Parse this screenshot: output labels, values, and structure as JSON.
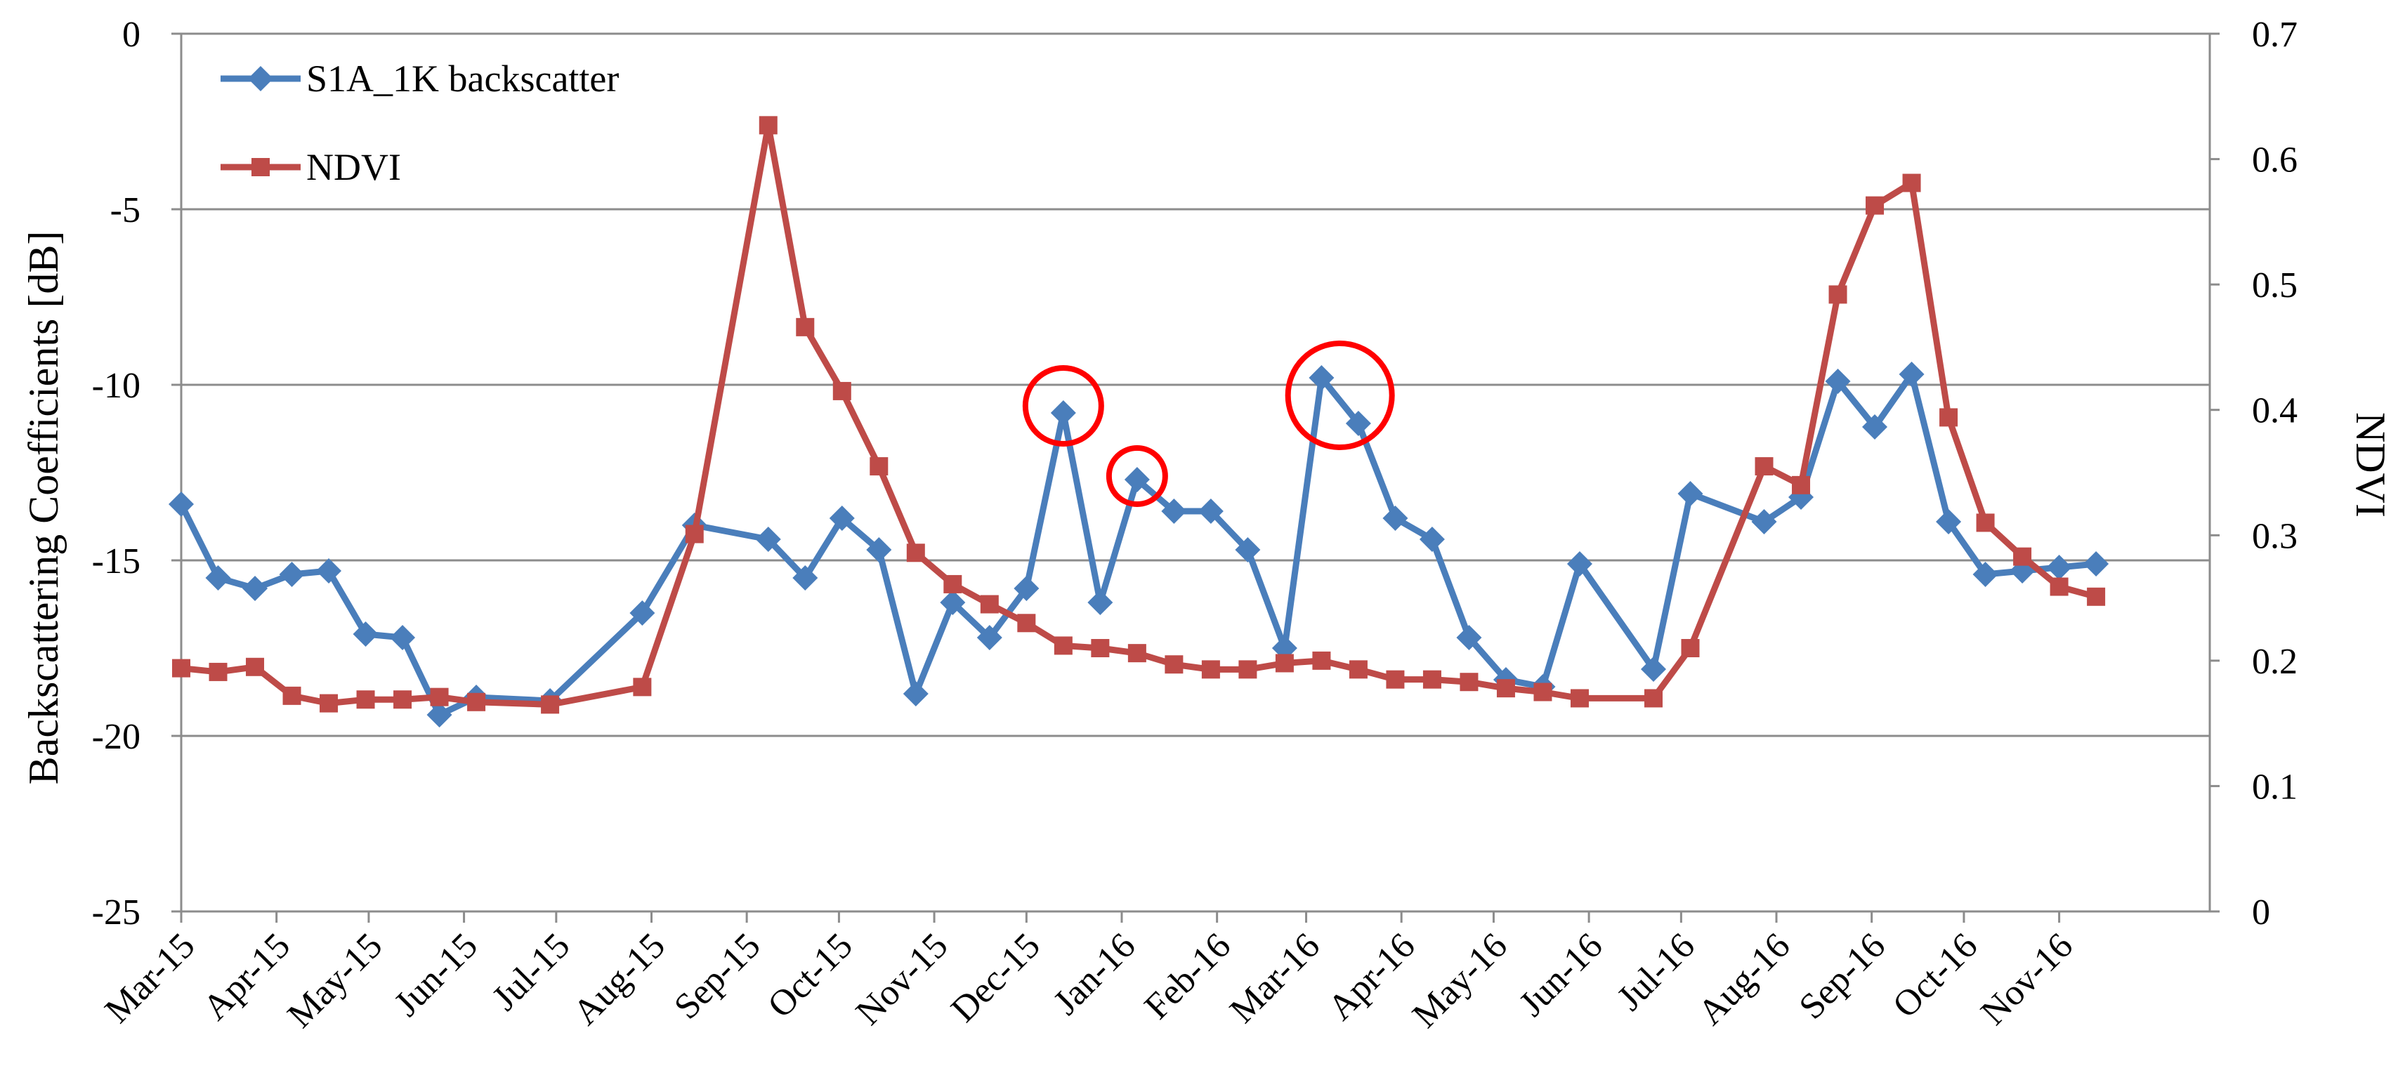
{
  "chart_data": {
    "type": "line",
    "title": "",
    "xlabel": "",
    "ylabel": "Backscattering Coefficients [dB]",
    "y2label": "NDVI",
    "ylim": [
      -25,
      0
    ],
    "yticks": [
      "0",
      "-5",
      "-10",
      "-15",
      "-20",
      "-25"
    ],
    "y2lim": [
      0,
      0.7
    ],
    "y2ticks": [
      "0",
      "0.1",
      "0.2",
      "0.3",
      "0.4",
      "0.5",
      "0.6",
      "0.7"
    ],
    "xlim": [
      "2015-03-01",
      "2016-12-20"
    ],
    "xticks": [
      "Mar-15",
      "Apr-15",
      "May-15",
      "Jun-15",
      "Jul-15",
      "Aug-15",
      "Sep-15",
      "Oct-15",
      "Nov-15",
      "Dec-15",
      "Jan-16",
      "Feb-16",
      "Mar-16",
      "Apr-16",
      "May-16",
      "Jun-16",
      "Jul-16",
      "Aug-16",
      "Sep-16",
      "Oct-16",
      "Nov-16"
    ],
    "grid": "horizontal",
    "legend_position": "top-left",
    "series": [
      {
        "name": "S1A_1K backscatter",
        "axis": "left",
        "color": "#4a7ebb",
        "marker": "diamond",
        "points": [
          [
            "2015-03-01",
            -13.4
          ],
          [
            "2015-03-13",
            -15.5
          ],
          [
            "2015-03-25",
            -15.8
          ],
          [
            "2015-04-06",
            -15.4
          ],
          [
            "2015-04-18",
            -15.3
          ],
          [
            "2015-04-30",
            -17.1
          ],
          [
            "2015-05-12",
            -17.2
          ],
          [
            "2015-05-24",
            -19.4
          ],
          [
            "2015-06-05",
            -18.9
          ],
          [
            "2015-06-29",
            -19.0
          ],
          [
            "2015-07-29",
            -16.5
          ],
          [
            "2015-08-15",
            -14.0
          ],
          [
            "2015-09-08",
            -14.4
          ],
          [
            "2015-09-20",
            -15.5
          ],
          [
            "2015-10-02",
            -13.8
          ],
          [
            "2015-10-14",
            -14.7
          ],
          [
            "2015-10-26",
            -18.8
          ],
          [
            "2015-11-07",
            -16.2
          ],
          [
            "2015-11-19",
            -17.2
          ],
          [
            "2015-12-01",
            -15.8
          ],
          [
            "2015-12-13",
            -10.8
          ],
          [
            "2015-12-25",
            -16.2
          ],
          [
            "2016-01-06",
            -12.7
          ],
          [
            "2016-01-18",
            -13.6
          ],
          [
            "2016-01-30",
            -13.6
          ],
          [
            "2016-02-11",
            -14.7
          ],
          [
            "2016-02-23",
            -17.5
          ],
          [
            "2016-03-06",
            -9.8
          ],
          [
            "2016-03-18",
            -11.1
          ],
          [
            "2016-03-30",
            -13.8
          ],
          [
            "2016-04-11",
            -14.4
          ],
          [
            "2016-04-23",
            -17.2
          ],
          [
            "2016-05-05",
            -18.4
          ],
          [
            "2016-05-17",
            -18.6
          ],
          [
            "2016-05-29",
            -15.1
          ],
          [
            "2016-06-22",
            -18.1
          ],
          [
            "2016-07-04",
            -13.1
          ],
          [
            "2016-07-28",
            -13.9
          ],
          [
            "2016-08-09",
            -13.2
          ],
          [
            "2016-08-21",
            -9.9
          ],
          [
            "2016-09-02",
            -11.2
          ],
          [
            "2016-09-14",
            -9.7
          ],
          [
            "2016-09-26",
            -13.9
          ],
          [
            "2016-10-08",
            -15.4
          ],
          [
            "2016-10-20",
            -15.3
          ],
          [
            "2016-11-01",
            -15.2
          ],
          [
            "2016-11-13",
            -15.1
          ]
        ]
      },
      {
        "name": "NDVI",
        "axis": "right",
        "color": "#be4b48",
        "marker": "square",
        "points": [
          [
            "2015-03-01",
            0.194
          ],
          [
            "2015-03-13",
            0.191
          ],
          [
            "2015-03-25",
            0.195
          ],
          [
            "2015-04-06",
            0.172
          ],
          [
            "2015-04-18",
            0.166
          ],
          [
            "2015-04-30",
            0.169
          ],
          [
            "2015-05-12",
            0.169
          ],
          [
            "2015-05-24",
            0.171
          ],
          [
            "2015-06-05",
            0.167
          ],
          [
            "2015-06-29",
            0.165
          ],
          [
            "2015-07-29",
            0.179
          ],
          [
            "2015-08-15",
            0.301
          ],
          [
            "2015-09-08",
            0.627
          ],
          [
            "2015-09-20",
            0.466
          ],
          [
            "2015-10-02",
            0.415
          ],
          [
            "2015-10-14",
            0.355
          ],
          [
            "2015-10-26",
            0.286
          ],
          [
            "2015-11-07",
            0.261
          ],
          [
            "2015-11-19",
            0.245
          ],
          [
            "2015-12-01",
            0.23
          ],
          [
            "2015-12-13",
            0.212
          ],
          [
            "2015-12-25",
            0.21
          ],
          [
            "2016-01-06",
            0.206
          ],
          [
            "2016-01-18",
            0.197
          ],
          [
            "2016-01-30",
            0.193
          ],
          [
            "2016-02-11",
            0.193
          ],
          [
            "2016-02-23",
            0.198
          ],
          [
            "2016-03-06",
            0.2
          ],
          [
            "2016-03-18",
            0.193
          ],
          [
            "2016-03-30",
            0.185
          ],
          [
            "2016-04-11",
            0.185
          ],
          [
            "2016-04-23",
            0.183
          ],
          [
            "2016-05-05",
            0.178
          ],
          [
            "2016-05-17",
            0.175
          ],
          [
            "2016-05-29",
            0.17
          ],
          [
            "2016-06-22",
            0.17
          ],
          [
            "2016-07-04",
            0.21
          ],
          [
            "2016-07-28",
            0.355
          ],
          [
            "2016-08-09",
            0.34
          ],
          [
            "2016-08-21",
            0.492
          ],
          [
            "2016-09-02",
            0.563
          ],
          [
            "2016-09-14",
            0.581
          ],
          [
            "2016-09-26",
            0.394
          ],
          [
            "2016-10-08",
            0.31
          ],
          [
            "2016-10-20",
            0.283
          ],
          [
            "2016-11-01",
            0.259
          ],
          [
            "2016-11-13",
            0.251
          ]
        ]
      }
    ],
    "annotations": [
      {
        "type": "circle",
        "color": "#ff0000",
        "x": "2015-12-13",
        "y": -10.6,
        "axis": "left"
      },
      {
        "type": "circle",
        "color": "#ff0000",
        "x": "2016-01-06",
        "y": -12.6,
        "axis": "left"
      },
      {
        "type": "circle",
        "color": "#ff0000",
        "x": "2016-03-12",
        "y": -10.3,
        "axis": "left"
      }
    ]
  }
}
